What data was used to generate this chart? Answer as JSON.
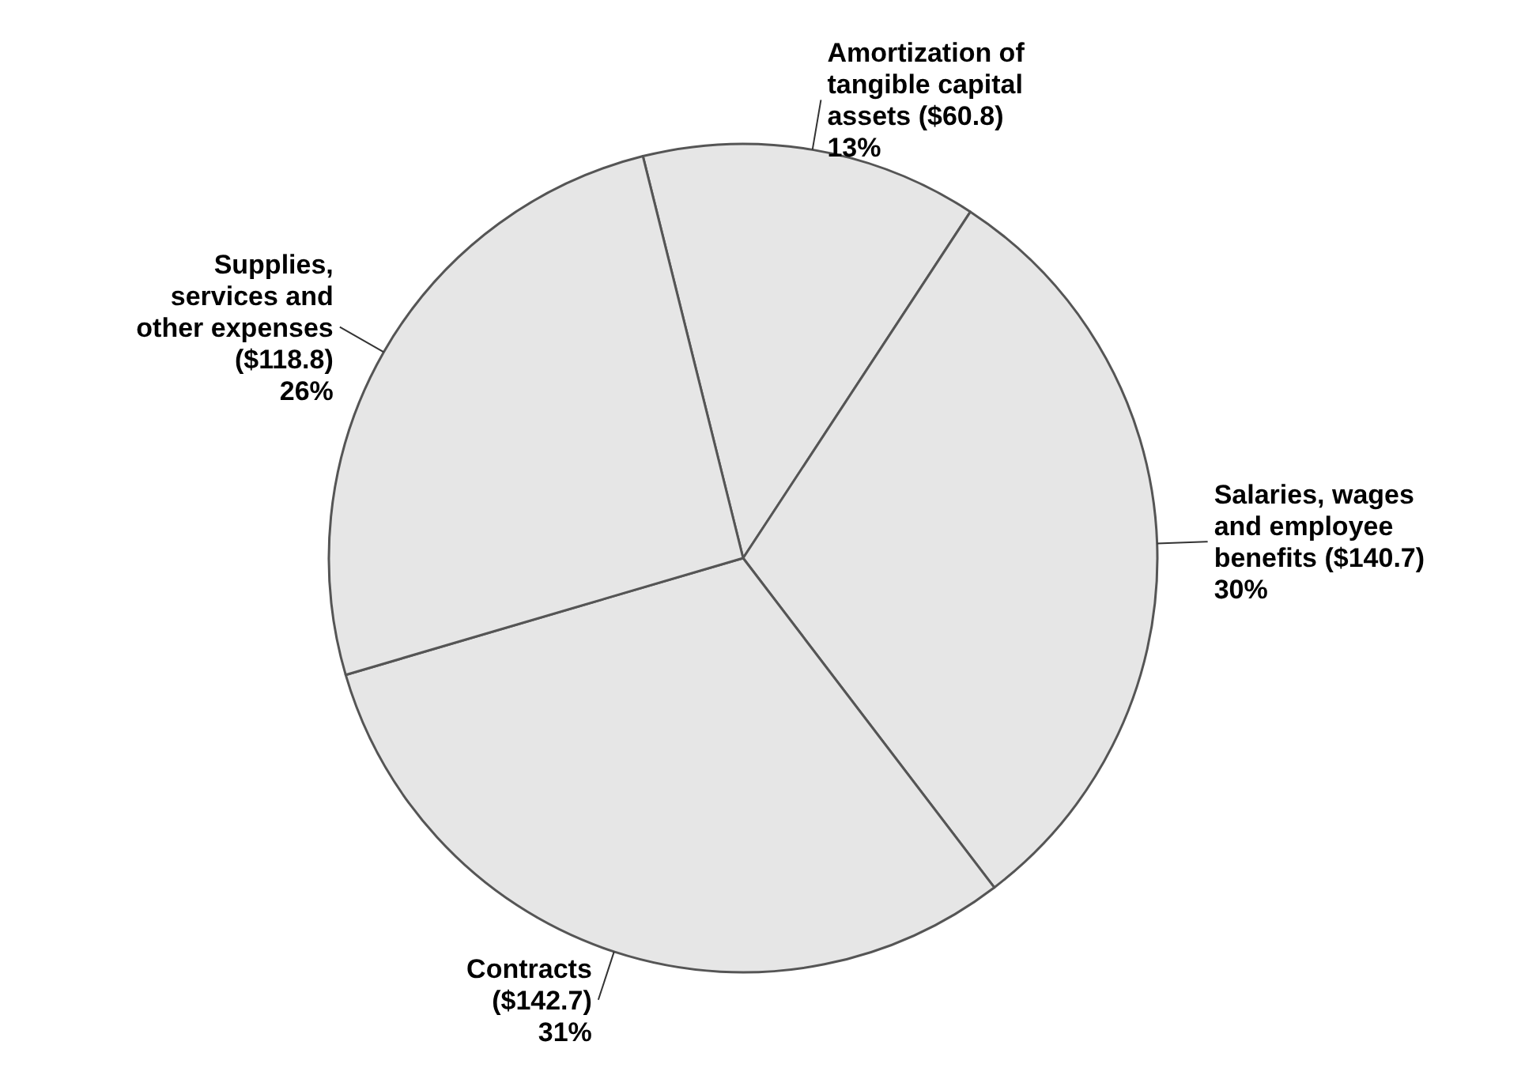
{
  "chart_data": {
    "type": "pie",
    "categories": [
      "Amortization of tangible capital assets",
      "Salaries, wages and employee benefits",
      "Contracts",
      "Supplies, services and other expenses"
    ],
    "values": [
      60.8,
      140.7,
      142.7,
      118.8
    ],
    "value_labels": [
      "($60.8) 13%",
      "($140.7) 30%",
      "($142.7) 31%",
      "($118.8) 26%"
    ],
    "colors": [
      "#e6e6e6",
      "#e6e6e6",
      "#e6e6e6",
      "#e6e6e6"
    ]
  }
}
